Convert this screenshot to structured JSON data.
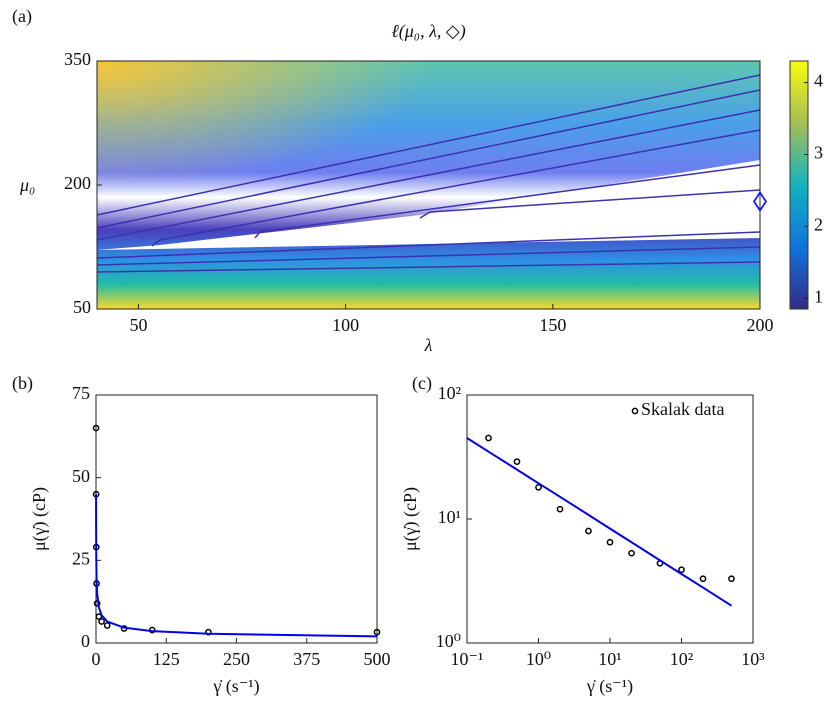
{
  "chart_data": [
    {
      "type": "contour",
      "panel_label": "(a)",
      "title": "ℓ(μ₀, λ, ◇)",
      "x_label": "λ",
      "y_label": "μ₀",
      "xlim": [
        40,
        200
      ],
      "xticks": [
        50,
        100,
        150,
        200
      ],
      "ylim": [
        50,
        350
      ],
      "yticks": [
        50,
        200,
        350
      ],
      "colorbar": {
        "lim": [
          0.85,
          4.3
        ],
        "ticks": [
          1,
          2,
          3,
          4
        ]
      },
      "marker": {
        "x": [
          200
        ],
        "y": [
          180
        ],
        "color": "#1a1aff"
      }
    },
    {
      "type": "scatter",
      "panel_label": "(b)",
      "x_label": "γ̇ (s⁻¹)",
      "y_label": "μ(γ̇) (cP)",
      "xlim": [
        0,
        500
      ],
      "xticks": [
        0,
        125,
        250,
        375,
        500
      ],
      "ylim": [
        0,
        75
      ],
      "yticks": [
        0,
        25,
        50,
        75
      ],
      "series": [
        {
          "type": "scatter",
          "color": "#000000",
          "x": [
            0.1,
            0.2,
            0.5,
            1,
            2,
            5,
            10,
            20,
            50,
            100,
            200,
            500
          ],
          "y": [
            65,
            45,
            29,
            18,
            12,
            8,
            6.5,
            5.3,
            4.4,
            3.9,
            3.3,
            3.3
          ]
        },
        {
          "type": "line",
          "color": "#0000ee",
          "x": [
            0.1,
            0.2,
            0.5,
            1,
            2,
            5,
            10,
            20,
            50,
            100,
            200,
            500
          ],
          "y": [
            45,
            34.9,
            25,
            19.4,
            15.1,
            10.8,
            8.36,
            6.49,
            4.64,
            3.6,
            2.8,
            2
          ]
        }
      ]
    },
    {
      "type": "scatter",
      "panel_label": "(c)",
      "x_label": "γ̇ (s⁻¹)",
      "y_label": "μ(γ̇) (cP)",
      "log_x": true,
      "log_y": true,
      "xlim": [
        0.1,
        1000
      ],
      "xticks": [
        {
          "value": 0.1,
          "label": "10⁻¹"
        },
        {
          "value": 1,
          "label": "10⁰"
        },
        {
          "value": 10,
          "label": "10¹"
        },
        {
          "value": 100,
          "label": "10²"
        },
        {
          "value": 1000,
          "label": "10³"
        }
      ],
      "ylim": [
        1,
        100
      ],
      "yticks": [
        {
          "value": 1,
          "label": "10⁰"
        },
        {
          "value": 10,
          "label": "10¹"
        },
        {
          "value": 100,
          "label": "10²"
        }
      ],
      "legend": "northeast",
      "series": [
        {
          "type": "scatter",
          "name": "Skalak data",
          "color": "#000000",
          "x": [
            0.2,
            0.5,
            1,
            2,
            5,
            10,
            20,
            50,
            100,
            200,
            500
          ],
          "y": [
            45,
            29,
            18,
            12,
            8,
            6.5,
            5.3,
            4.4,
            3.9,
            3.3,
            3.3
          ]
        },
        {
          "type": "line",
          "color": "#0000ee",
          "x": [
            0.1,
            0.2,
            0.5,
            1,
            2,
            5,
            10,
            20,
            50,
            100,
            200,
            500
          ],
          "y": [
            45,
            34.9,
            25,
            19.4,
            15.1,
            10.8,
            8.36,
            6.49,
            4.64,
            3.6,
            2.8,
            2
          ]
        }
      ]
    }
  ]
}
